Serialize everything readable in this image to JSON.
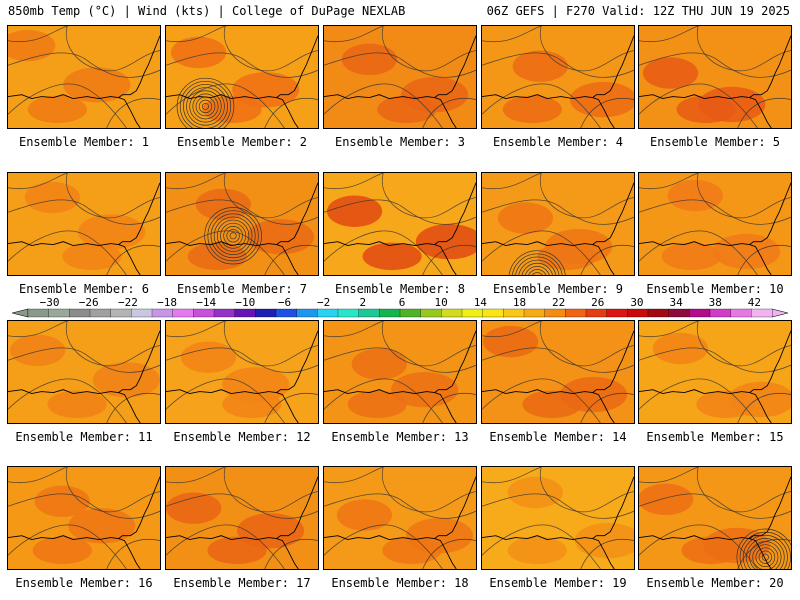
{
  "header": {
    "left": "850mb Temp (°C) | Wind (kts) | College of DuPage NEXLAB",
    "right": "06Z GEFS | F270 Valid: 12Z THU JUN 19 2025"
  },
  "colorbar": {
    "labels": [
      "-30",
      "-26",
      "-22",
      "-18",
      "-14",
      "-10",
      "-6",
      "-2",
      "2",
      "6",
      "10",
      "14",
      "18",
      "22",
      "26",
      "30",
      "34",
      "38",
      "42"
    ],
    "colors": [
      "#8a9a8a",
      "#9aa89a",
      "#8c8c8c",
      "#a0a0a0",
      "#b4b4b4",
      "#c8c8e0",
      "#c896e6",
      "#e678f0",
      "#c850dc",
      "#9632c8",
      "#6414b4",
      "#1e1eb4",
      "#1e50e6",
      "#1e96f0",
      "#28d2f0",
      "#28e6c8",
      "#1ec896",
      "#14b450",
      "#50b428",
      "#96c81e",
      "#d2dc1e",
      "#f0f014",
      "#fae614",
      "#fac814",
      "#f8aa14",
      "#f48c14",
      "#f06414",
      "#e63c14",
      "#dc1414",
      "#c80a0a",
      "#a00a14",
      "#8c0a3c",
      "#b40a8c",
      "#d23cc8",
      "#e678e6",
      "#f0b4f0"
    ]
  },
  "members": [
    {
      "label": "Ensemble Member: 1",
      "base": "#f59e18",
      "hot": "#f07a14",
      "low": false,
      "lx": 0,
      "ly": 0
    },
    {
      "label": "Ensemble Member: 2",
      "base": "#f6a018",
      "hot": "#ee7014",
      "low": true,
      "lx": 40,
      "ly": 82
    },
    {
      "label": "Ensemble Member: 3",
      "base": "#f28a16",
      "hot": "#ea6414",
      "low": false,
      "lx": 0,
      "ly": 0
    },
    {
      "label": "Ensemble Member: 4",
      "base": "#f49616",
      "hot": "#ec6c14",
      "low": false,
      "lx": 0,
      "ly": 0
    },
    {
      "label": "Ensemble Member: 5",
      "base": "#f39016",
      "hot": "#e85a14",
      "low": false,
      "lx": 0,
      "ly": 0
    },
    {
      "label": "Ensemble Member: 6",
      "base": "#f59e18",
      "hot": "#f28216",
      "low": false,
      "lx": 0,
      "ly": 0
    },
    {
      "label": "Ensemble Member: 7",
      "base": "#f29016",
      "hot": "#ea6a14",
      "low": true,
      "lx": 68,
      "ly": 64
    },
    {
      "label": "Ensemble Member: 8",
      "base": "#f7a81a",
      "hot": "#e04a14",
      "low": false,
      "lx": 0,
      "ly": 0
    },
    {
      "label": "Ensemble Member: 9",
      "base": "#f49a18",
      "hot": "#ee7614",
      "low": true,
      "lx": 56,
      "ly": 108
    },
    {
      "label": "Ensemble Member: 10",
      "base": "#f49616",
      "hot": "#f07a16",
      "low": false,
      "lx": 0,
      "ly": 0
    },
    {
      "label": "Ensemble Member: 11",
      "base": "#f59e18",
      "hot": "#f08016",
      "low": false,
      "lx": 0,
      "ly": 0
    },
    {
      "label": "Ensemble Member: 12",
      "base": "#f6a21a",
      "hot": "#f28416",
      "low": false,
      "lx": 0,
      "ly": 0
    },
    {
      "label": "Ensemble Member: 13",
      "base": "#f39416",
      "hot": "#ec7014",
      "low": false,
      "lx": 0,
      "ly": 0
    },
    {
      "label": "Ensemble Member: 14",
      "base": "#f39216",
      "hot": "#ea6814",
      "low": false,
      "lx": 0,
      "ly": 0
    },
    {
      "label": "Ensemble Member: 15",
      "base": "#f6a418",
      "hot": "#f28416",
      "low": false,
      "lx": 0,
      "ly": 0
    },
    {
      "label": "Ensemble Member: 16",
      "base": "#f49816",
      "hot": "#ee7414",
      "low": false,
      "lx": 0,
      "ly": 0
    },
    {
      "label": "Ensemble Member: 17",
      "base": "#f29016",
      "hot": "#ea6414",
      "low": false,
      "lx": 0,
      "ly": 0
    },
    {
      "label": "Ensemble Member: 18",
      "base": "#f49a18",
      "hot": "#ee7614",
      "low": false,
      "lx": 0,
      "ly": 0
    },
    {
      "label": "Ensemble Member: 19",
      "base": "#f7aa1a",
      "hot": "#f29016",
      "low": false,
      "lx": 0,
      "ly": 0
    },
    {
      "label": "Ensemble Member: 20",
      "base": "#f49616",
      "hot": "#ec6e14",
      "low": true,
      "lx": 128,
      "ly": 92
    }
  ]
}
